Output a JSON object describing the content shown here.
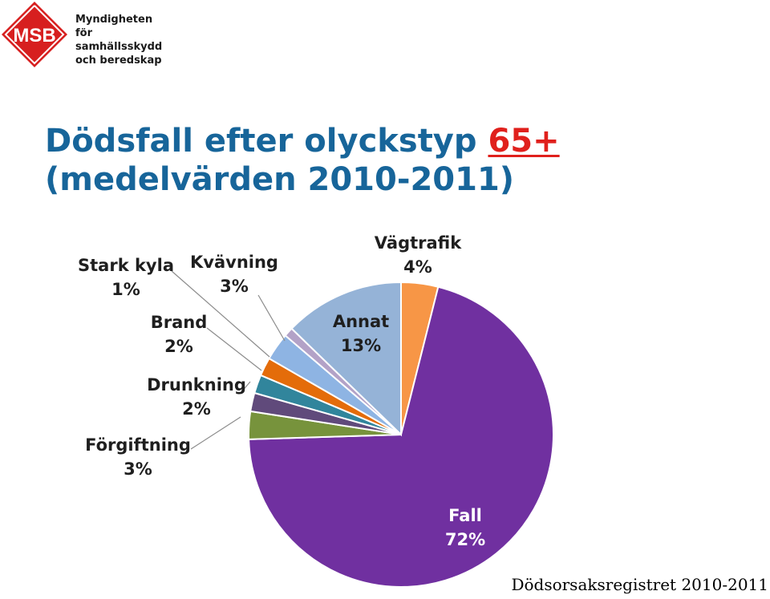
{
  "logo": {
    "mark": "MSB",
    "lines": [
      "Myndigheten för",
      "samhällsskydd",
      "och beredskap"
    ],
    "color": "#d71f1f"
  },
  "title": {
    "line1_prefix": "Dödsfall efter olyckstyp",
    "line1_highlight": "65+",
    "line2": "(medelvärden 2010-2011)"
  },
  "chart_data": {
    "type": "pie",
    "title": "Dödsfall efter olyckstyp 65+ (medelvärden 2010-2011)",
    "start_angle_deg": 0,
    "direction": "clockwise",
    "slices": [
      {
        "label": "Vägtrafik",
        "value": 4,
        "display": "4%",
        "color": "#f79646"
      },
      {
        "label": "Fall",
        "value": 72,
        "display": "72%",
        "color": "#7030a0"
      },
      {
        "label": "Förgiftning",
        "value": 3,
        "display": "3%",
        "color": "#77933c"
      },
      {
        "label": "Drunkning",
        "value": 2,
        "display": "2%",
        "color": "#604a7b"
      },
      {
        "label": "",
        "value": 2,
        "display": "",
        "color": "#31859c"
      },
      {
        "label": "Brand",
        "value": 2,
        "display": "2%",
        "color": "#e46c0a"
      },
      {
        "label": "Kvävning",
        "value": 3,
        "display": "3%",
        "color": "#8eb4e3"
      },
      {
        "label": "Stark kyla",
        "value": 1,
        "display": "1%",
        "color": "#b3a2c7"
      },
      {
        "label": "Annat",
        "value": 13,
        "display": "13%",
        "color": "#95b3d7"
      }
    ]
  },
  "source": "Dödsorsaksregistret 2010-2011"
}
